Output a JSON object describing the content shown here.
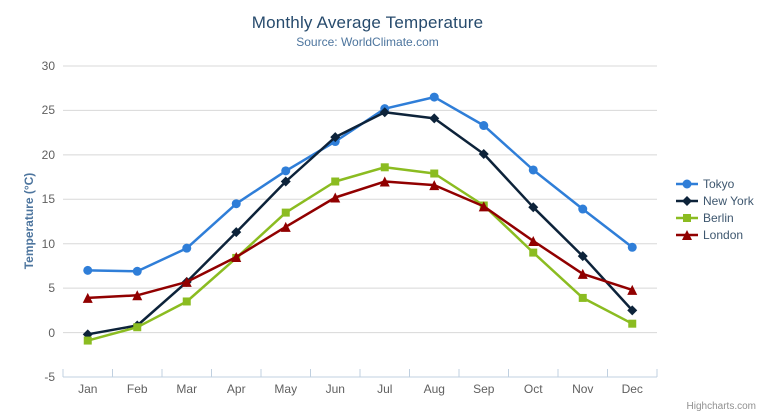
{
  "chart_data": {
    "type": "line",
    "title": "Monthly Average Temperature",
    "subtitle": "Source: WorldClimate.com",
    "xlabel": "",
    "ylabel": "Temperature (°C)",
    "categories": [
      "Jan",
      "Feb",
      "Mar",
      "Apr",
      "May",
      "Jun",
      "Jul",
      "Aug",
      "Sep",
      "Oct",
      "Nov",
      "Dec"
    ],
    "ylim": [
      -5,
      30
    ],
    "ytick_step": 5,
    "grid": true,
    "legend_position": "right",
    "series": [
      {
        "name": "Tokyo",
        "color": "#2f7ed8",
        "marker": "circle",
        "values": [
          7.0,
          6.9,
          9.5,
          14.5,
          18.2,
          21.5,
          25.2,
          26.5,
          23.3,
          18.3,
          13.9,
          9.6
        ]
      },
      {
        "name": "New York",
        "color": "#0d233a",
        "marker": "diamond",
        "values": [
          -0.2,
          0.8,
          5.7,
          11.3,
          17.0,
          22.0,
          24.8,
          24.1,
          20.1,
          14.1,
          8.6,
          2.5
        ]
      },
      {
        "name": "Berlin",
        "color": "#8bbc21",
        "marker": "square",
        "values": [
          -0.9,
          0.6,
          3.5,
          8.4,
          13.5,
          17.0,
          18.6,
          17.9,
          14.3,
          9.0,
          3.9,
          1.0
        ]
      },
      {
        "name": "London",
        "color": "#910000",
        "marker": "triangle",
        "values": [
          3.9,
          4.2,
          5.7,
          8.5,
          11.9,
          15.2,
          17.0,
          16.6,
          14.2,
          10.3,
          6.6,
          4.8
        ]
      }
    ]
  },
  "credits": {
    "label": "Highcharts.com"
  },
  "export_menu": {
    "icon": "hamburger-menu-icon"
  },
  "colors": {
    "title": "#274b6d",
    "subtitle": "#4d759e",
    "axis_title": "#4d759e",
    "tick_label": "#606060",
    "legend_text": "#3e576f",
    "gridline": "#d8d8d8",
    "axis_line": "#c0d0e0",
    "credits": "#909090",
    "menu_icon": "#666666"
  }
}
